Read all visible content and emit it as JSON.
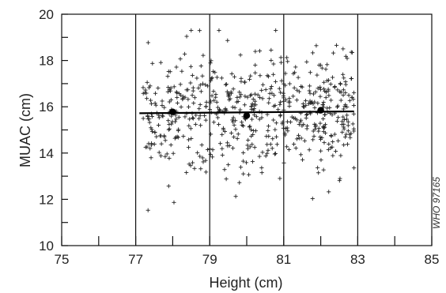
{
  "chart_data": {
    "type": "scatter",
    "title": "",
    "xlabel": "Height (cm)",
    "ylabel": "MUAC (cm)",
    "xlim": [
      75,
      85
    ],
    "ylim": [
      10,
      20
    ],
    "x_ticks": [
      "75",
      "77",
      "79",
      "81",
      "83",
      "85"
    ],
    "y_ticks": [
      "10",
      "12",
      "14",
      "16",
      "18",
      "20"
    ],
    "grid": "vertical lines at 77, 79, 81, 83",
    "marker": "plus",
    "point_count": 620,
    "x_range_of_points": [
      77.2,
      82.9
    ],
    "y_range_of_points": [
      11.0,
      19.3
    ],
    "mean_line": {
      "x": [
        77.1,
        82.9
      ],
      "y": [
        15.72,
        15.8
      ]
    },
    "group_means": [
      {
        "x": 78.0,
        "y": 15.78
      },
      {
        "x": 80.0,
        "y": 15.62
      },
      {
        "x": 82.0,
        "y": 15.85
      }
    ]
  },
  "watermark": "WHO 97165"
}
